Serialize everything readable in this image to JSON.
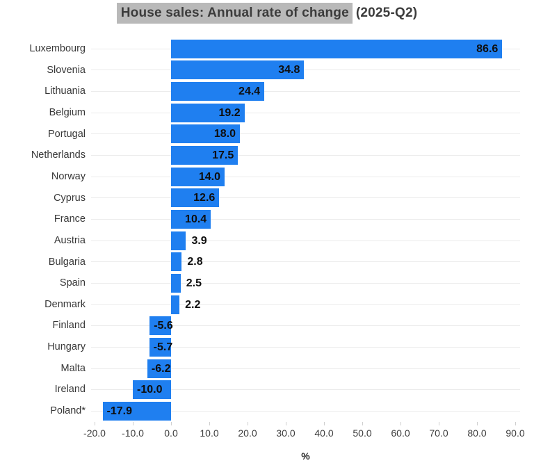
{
  "title": {
    "highlighted": "House sales: Annual rate of change",
    "suffix": "(2025-Q2)"
  },
  "colors": {
    "bar": "#1f7ff0",
    "title_highlight": "#b9b9b9",
    "gridline": "#ebebeb",
    "tick_mark": "#cfcfcf"
  },
  "chart_data": {
    "type": "bar",
    "orientation": "horizontal",
    "title": "House sales: Annual rate of change (2025-Q2)",
    "xlabel": "%",
    "categories": [
      "Luxembourg",
      "Slovenia",
      "Lithuania",
      "Belgium",
      "Portugal",
      "Netherlands",
      "Norway",
      "Cyprus",
      "France",
      "Austria",
      "Bulgaria",
      "Spain",
      "Denmark",
      "Finland",
      "Hungary",
      "Malta",
      "Ireland",
      "Poland*"
    ],
    "values": [
      86.6,
      34.8,
      24.4,
      19.2,
      18.0,
      17.5,
      14.0,
      12.6,
      10.4,
      3.9,
      2.8,
      2.5,
      2.2,
      -5.6,
      -5.7,
      -6.2,
      -10.0,
      -17.9
    ],
    "value_labels": [
      "86.6",
      "34.8",
      "24.4",
      "19.2",
      "18.0",
      "17.5",
      "14.0",
      "12.6",
      "10.4",
      "3.9",
      "2.8",
      "2.5",
      "2.2",
      "-5.6",
      "-5.7",
      "-6.2",
      "-10.0",
      "-17.9"
    ],
    "x_ticks": [
      -20,
      -10,
      0,
      10,
      20,
      30,
      40,
      50,
      60,
      70,
      80,
      90
    ],
    "x_tick_labels": [
      "-20.0",
      "-10.0",
      "0.0",
      "10.0",
      "20.0",
      "30.0",
      "40.0",
      "50.0",
      "60.0",
      "70.0",
      "80.0",
      "90.0"
    ],
    "xlim": [
      -20.9,
      91.4
    ],
    "grid": "horizontal-only",
    "legend": "none",
    "bar_color": "#1f7ff0"
  }
}
